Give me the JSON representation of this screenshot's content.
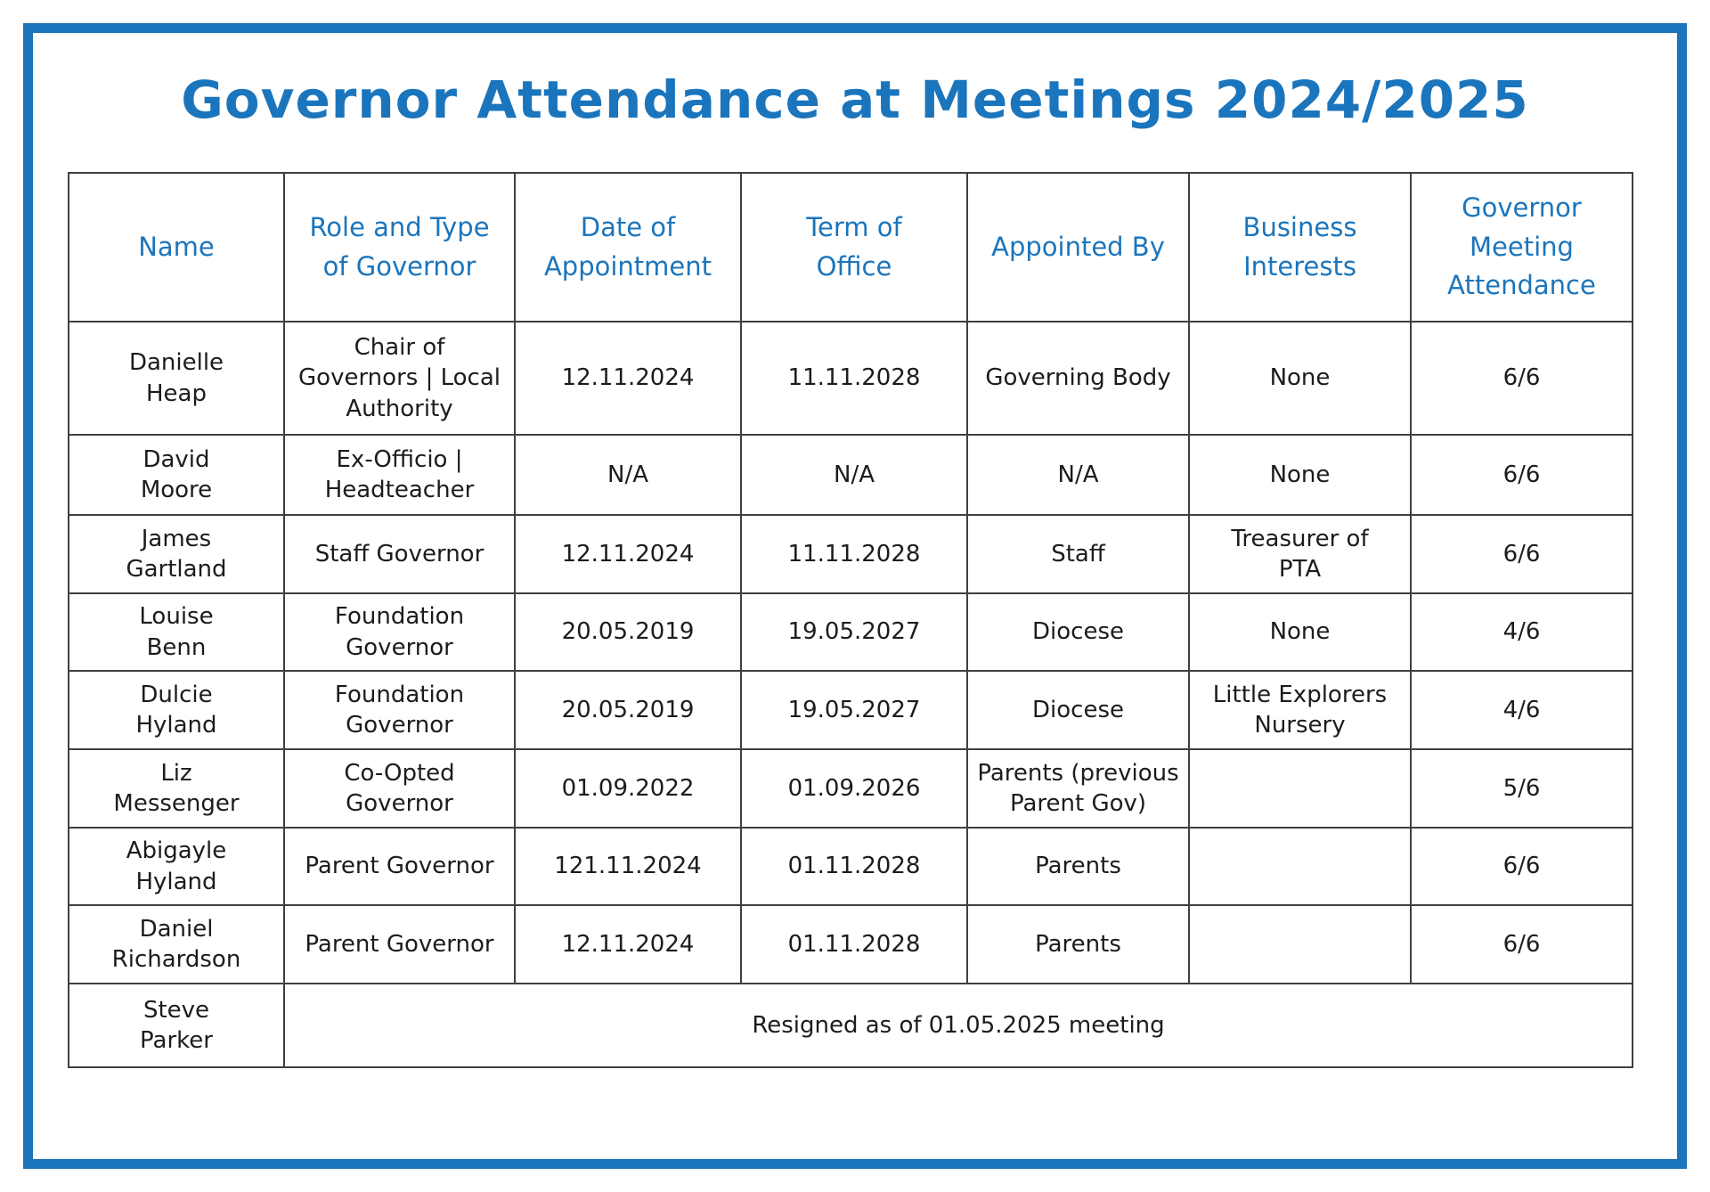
{
  "page": {
    "title": "Governor Attendance at Meetings 2024/2025"
  },
  "colors": {
    "accent": "#1b75bc",
    "frame": "#1b75bc",
    "grid": "#3f3f3f",
    "text": "#1c1c1c"
  },
  "table": {
    "headers": [
      "Name",
      "Role and Type\nof Governor",
      "Date of\nAppointment",
      "Term of\nOffice",
      "Appointed By",
      "Business\nInterests",
      "Governor\nMeeting\nAttendance"
    ],
    "rows": [
      {
        "name": "Danielle\nHeap",
        "role": "Chair of\nGovernors | Local\nAuthority",
        "date_of_appointment": "12.11.2024",
        "term_of_office": "11.11.2028",
        "appointed_by": "Governing Body",
        "business_interests": "None",
        "attendance": "6/6"
      },
      {
        "name": "David\nMoore",
        "role": "Ex-Officio |\nHeadteacher",
        "date_of_appointment": "N/A",
        "term_of_office": "N/A",
        "appointed_by": "N/A",
        "business_interests": "None",
        "attendance": "6/6"
      },
      {
        "name": "James\nGartland",
        "role": "Staff Governor",
        "date_of_appointment": "12.11.2024",
        "term_of_office": "11.11.2028",
        "appointed_by": "Staff",
        "business_interests": "Treasurer of\nPTA",
        "attendance": "6/6"
      },
      {
        "name": "Louise\nBenn",
        "role": "Foundation\nGovernor",
        "date_of_appointment": "20.05.2019",
        "term_of_office": "19.05.2027",
        "appointed_by": "Diocese",
        "business_interests": "None",
        "attendance": "4/6"
      },
      {
        "name": "Dulcie\nHyland",
        "role": "Foundation\nGovernor",
        "date_of_appointment": "20.05.2019",
        "term_of_office": "19.05.2027",
        "appointed_by": "Diocese",
        "business_interests": "Little Explorers\nNursery",
        "attendance": "4/6"
      },
      {
        "name": "Liz\nMessenger",
        "role": "Co-Opted\nGovernor",
        "date_of_appointment": "01.09.2022",
        "term_of_office": "01.09.2026",
        "appointed_by": "Parents (previous\nParent Gov)",
        "business_interests": "",
        "attendance": "5/6"
      },
      {
        "name": "Abigayle\nHyland",
        "role": "Parent Governor",
        "date_of_appointment": "121.11.2024",
        "term_of_office": "01.11.2028",
        "appointed_by": "Parents",
        "business_interests": "",
        "attendance": "6/6"
      },
      {
        "name": "Daniel\nRichardson",
        "role": "Parent Governor",
        "date_of_appointment": "12.11.2024",
        "term_of_office": "01.11.2028",
        "appointed_by": "Parents",
        "business_interests": "",
        "attendance": "6/6"
      },
      {
        "name": "Steve\nParker",
        "note": "Resigned as of 01.05.2025 meeting"
      }
    ]
  }
}
